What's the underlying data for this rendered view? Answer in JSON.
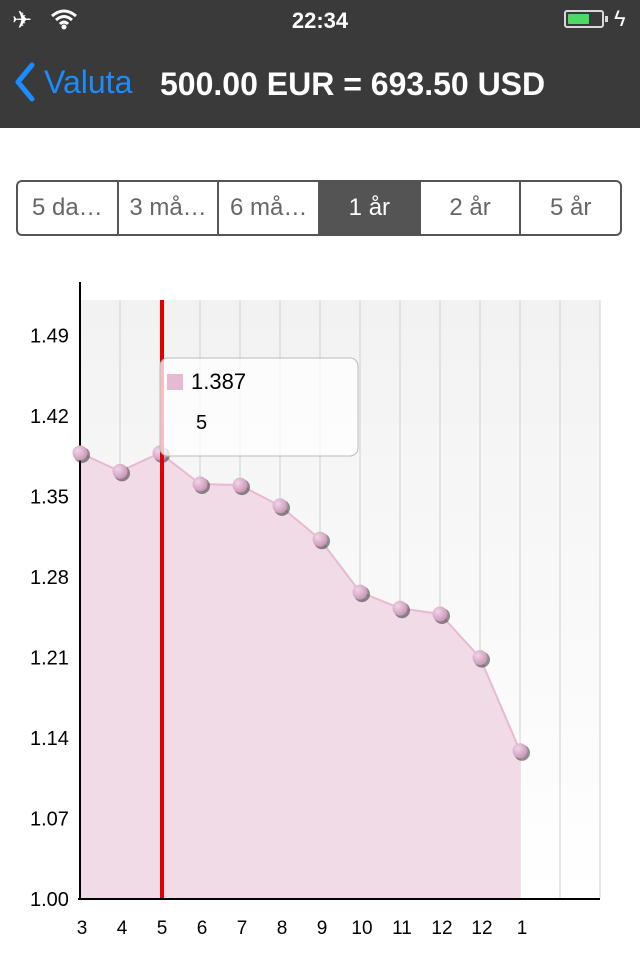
{
  "status_bar": {
    "time": "22:34",
    "battery_level": 0.65
  },
  "nav": {
    "back_label": "Valuta",
    "title": "500.00 EUR = 693.50 USD"
  },
  "range_tabs": [
    {
      "label": "5 da…",
      "selected": false
    },
    {
      "label": "3 må…",
      "selected": false
    },
    {
      "label": "6 må…",
      "selected": false
    },
    {
      "label": "1 år",
      "selected": true
    },
    {
      "label": "2 år",
      "selected": false
    },
    {
      "label": "5 år",
      "selected": false
    }
  ],
  "chart_data": {
    "type": "area",
    "categories": [
      "3",
      "4",
      "5",
      "6",
      "7",
      "8",
      "9",
      "10",
      "11",
      "12",
      "12",
      "1"
    ],
    "values": [
      1.387,
      1.371,
      1.387,
      1.36,
      1.359,
      1.341,
      1.312,
      1.266,
      1.252,
      1.247,
      1.209,
      1.128
    ],
    "y_ticks": [
      "1.00",
      "1.07",
      "1.14",
      "1.21",
      "1.28",
      "1.35",
      "1.42",
      "1.49"
    ],
    "ylim": [
      1.0,
      1.52
    ],
    "grid": true,
    "colors": {
      "fill": "#f0dbe6",
      "line": "#e8b9d3",
      "marker": "#d7a9c6",
      "cursor": "#e00000"
    },
    "selected_index": 2,
    "tooltip": {
      "value": "1.387",
      "label": "5"
    }
  }
}
